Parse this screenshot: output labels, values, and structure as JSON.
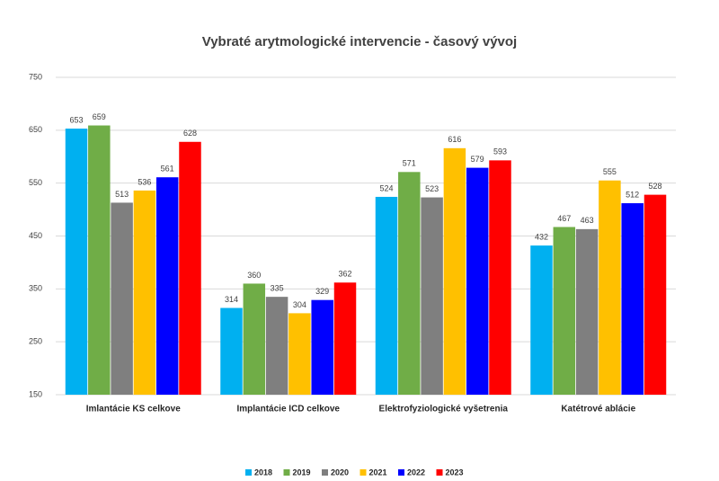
{
  "chart_data": {
    "type": "bar",
    "title": "Vybraté arytmologické intervencie - časový vývoj",
    "categories": [
      "Imlantácie KS celkove",
      "Implantácie ICD celkove",
      "Elektrofyziologické vyšetrenia",
      "Katétrové ablácie"
    ],
    "series": [
      {
        "name": "2018",
        "color": "#00b0f0",
        "values": [
          653,
          314,
          524,
          432
        ]
      },
      {
        "name": "2019",
        "color": "#70ad47",
        "values": [
          659,
          360,
          571,
          467
        ]
      },
      {
        "name": "2020",
        "color": "#7f7f7f",
        "values": [
          513,
          335,
          523,
          463
        ]
      },
      {
        "name": "2021",
        "color": "#ffc000",
        "values": [
          536,
          304,
          616,
          555
        ]
      },
      {
        "name": "2022",
        "color": "#0000ff",
        "values": [
          561,
          329,
          579,
          512
        ]
      },
      {
        "name": "2023",
        "color": "#ff0000",
        "values": [
          628,
          362,
          593,
          528
        ]
      }
    ],
    "ylim": [
      150,
      750
    ],
    "yticks": [
      150,
      250,
      350,
      450,
      550,
      650,
      750
    ],
    "grid": true,
    "legend": "bottom"
  }
}
